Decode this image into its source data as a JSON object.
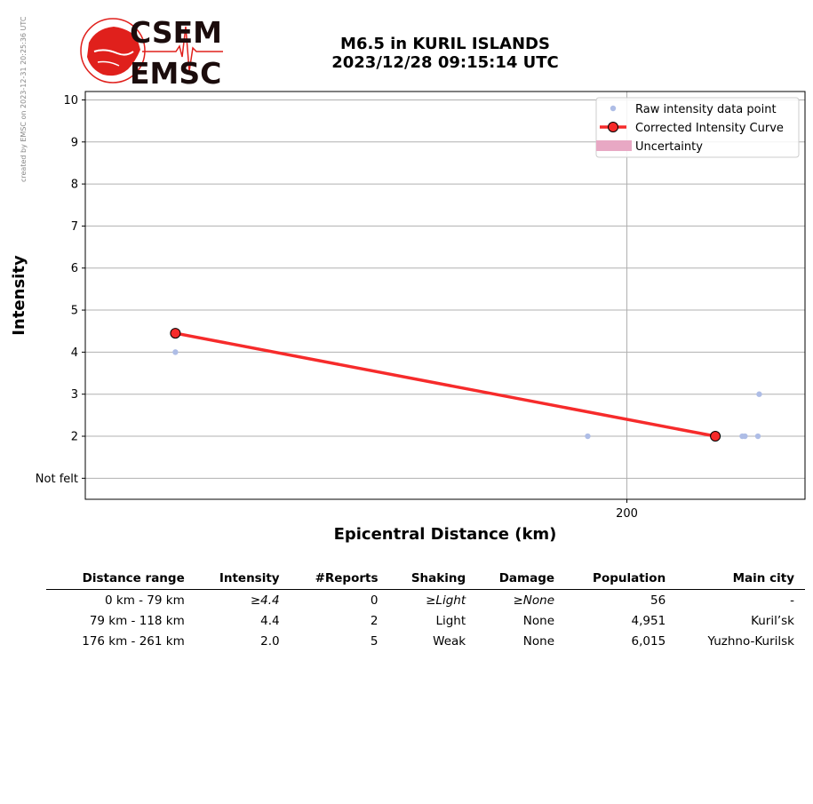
{
  "credit": "created by EMSC on 2023-12-31 20:25:36 UTC",
  "logo": {
    "top": "CSEM",
    "bottom": "EMSC"
  },
  "title": {
    "line1": "M6.5 in KURIL ISLANDS",
    "line2": "2023/12/28 09:15:14 UTC"
  },
  "colors": {
    "curve": "#f62b2b",
    "raw": "#aebde6",
    "uncertainty": "#e8a8c4",
    "logo_red": "#e0201c",
    "grid": "#b0b0b0"
  },
  "chart_data": {
    "type": "line",
    "xlabel": "Epicentral Distance (km)",
    "ylabel": "Intensity",
    "xscale": "log",
    "xlim": [
      85,
      265
    ],
    "ylim": [
      0.5,
      10.2
    ],
    "x_ticks": [
      200
    ],
    "y_ticks": [
      {
        "value": 1,
        "label": "Not felt"
      },
      {
        "value": 2,
        "label": "2"
      },
      {
        "value": 3,
        "label": "3"
      },
      {
        "value": 4,
        "label": "4"
      },
      {
        "value": 5,
        "label": "5"
      },
      {
        "value": 6,
        "label": "6"
      },
      {
        "value": 7,
        "label": "7"
      },
      {
        "value": 8,
        "label": "8"
      },
      {
        "value": 9,
        "label": "9"
      },
      {
        "value": 10,
        "label": "10"
      }
    ],
    "grid": true,
    "legend_position": "top-right",
    "legend": [
      "Raw intensity data point",
      "Corrected Intensity Curve",
      "Uncertainty"
    ],
    "series": [
      {
        "name": "Raw intensity data point",
        "kind": "scatter",
        "points": [
          [
            98,
            4
          ],
          [
            188,
            2
          ],
          [
            240,
            2
          ],
          [
            241,
            2
          ],
          [
            246,
            2
          ],
          [
            246.5,
            3
          ]
        ]
      },
      {
        "name": "Corrected Intensity Curve",
        "kind": "line",
        "points": [
          [
            98,
            4.45
          ],
          [
            230,
            2.0
          ]
        ]
      }
    ]
  },
  "table": {
    "headers": [
      "Distance range",
      "Intensity",
      "#Reports",
      "Shaking",
      "Damage",
      "Population",
      "Main city"
    ],
    "rows": [
      {
        "range": "0 km -   79 km",
        "intensity": "≥4.4",
        "reports": "0",
        "shaking": "≥Light",
        "damage": "≥None",
        "population": "56",
        "city": "-",
        "italic": true
      },
      {
        "range": "79 km -  118 km",
        "intensity": "4.4",
        "reports": "2",
        "shaking": "Light",
        "damage": "None",
        "population": "4,951",
        "city": "Kuril’sk",
        "italic": false
      },
      {
        "range": "176 km -  261 km",
        "intensity": "2.0",
        "reports": "5",
        "shaking": "Weak",
        "damage": "None",
        "population": "6,015",
        "city": "Yuzhno-Kurilsk",
        "italic": false
      }
    ]
  }
}
